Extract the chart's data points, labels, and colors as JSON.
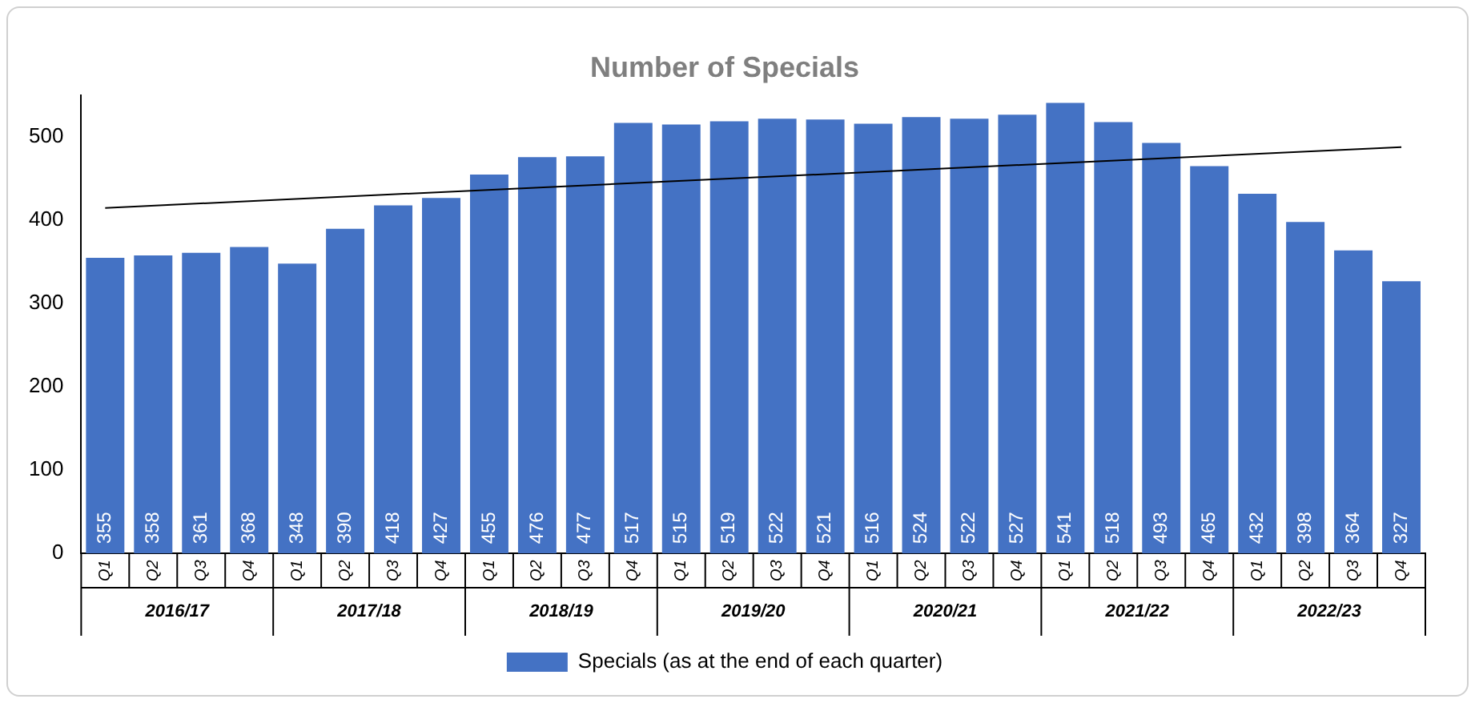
{
  "chart_data": {
    "type": "bar",
    "title": "Number of Specials",
    "categories": [
      "Q1",
      "Q2",
      "Q3",
      "Q4",
      "Q1",
      "Q2",
      "Q3",
      "Q4",
      "Q1",
      "Q2",
      "Q3",
      "Q4",
      "Q1",
      "Q2",
      "Q3",
      "Q4",
      "Q1",
      "Q2",
      "Q3",
      "Q4",
      "Q1",
      "Q2",
      "Q3",
      "Q4",
      "Q1",
      "Q2",
      "Q3",
      "Q4"
    ],
    "series": [
      {
        "name": "Specials (as at the end of each quarter)",
        "color": "#4472c4",
        "values": [
          355,
          358,
          361,
          368,
          348,
          390,
          418,
          427,
          455,
          476,
          477,
          517,
          515,
          519,
          522,
          521,
          516,
          524,
          522,
          527,
          541,
          518,
          493,
          465,
          432,
          398,
          364,
          327
        ],
        "value_labels": [
          "355",
          "358",
          "361",
          "368",
          "348",
          "390",
          "418",
          "427",
          "455",
          "476",
          "477",
          "517",
          "515",
          "519",
          "522",
          "521",
          "516",
          "524",
          "522",
          "527",
          "541",
          "518",
          "493",
          "465",
          "432",
          "398",
          "364",
          "327"
        ]
      },
      {
        "type": "line",
        "color": "#000000",
        "values": [
          415,
          null,
          null,
          null,
          null,
          null,
          null,
          null,
          null,
          null,
          null,
          null,
          null,
          null,
          null,
          null,
          null,
          null,
          null,
          null,
          null,
          null,
          null,
          null,
          null,
          null,
          null,
          488
        ]
      }
    ],
    "annotations": [
      "2016/17",
      "2017/18",
      "2018/19",
      "2019/20",
      "2020/21",
      "2021/22",
      "2022/23"
    ],
    "ylim": [
      0,
      550
    ],
    "yticks": [
      0,
      100,
      200,
      300,
      400,
      500
    ],
    "grid": false,
    "legend": "bottom"
  }
}
